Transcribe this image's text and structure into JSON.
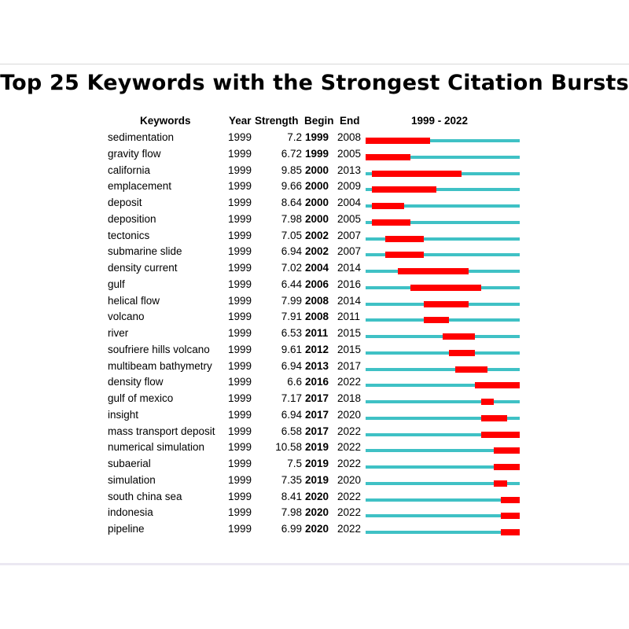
{
  "title": "Top 25 Keywords with the Strongest Citation Bursts",
  "headers": {
    "keywords": "Keywords",
    "year": "Year",
    "strength": "Strength",
    "begin": "Begin",
    "end": "End",
    "range": "1999 - 2022"
  },
  "colors": {
    "track": "#3fc1c5",
    "burst": "#ff0000"
  },
  "chart_data": {
    "type": "table",
    "range_start": 1999,
    "range_end": 2022,
    "rows": [
      {
        "keyword": "sedimentation",
        "year": "1999",
        "strength": "7.2",
        "begin": "1999",
        "end": "2008"
      },
      {
        "keyword": "gravity flow",
        "year": "1999",
        "strength": "6.72",
        "begin": "1999",
        "end": "2005"
      },
      {
        "keyword": "california",
        "year": "1999",
        "strength": "9.85",
        "begin": "2000",
        "end": "2013"
      },
      {
        "keyword": "emplacement",
        "year": "1999",
        "strength": "9.66",
        "begin": "2000",
        "end": "2009"
      },
      {
        "keyword": "deposit",
        "year": "1999",
        "strength": "8.64",
        "begin": "2000",
        "end": "2004"
      },
      {
        "keyword": "deposition",
        "year": "1999",
        "strength": "7.98",
        "begin": "2000",
        "end": "2005"
      },
      {
        "keyword": "tectonics",
        "year": "1999",
        "strength": "7.05",
        "begin": "2002",
        "end": "2007"
      },
      {
        "keyword": "submarine slide",
        "year": "1999",
        "strength": "6.94",
        "begin": "2002",
        "end": "2007"
      },
      {
        "keyword": "density current",
        "year": "1999",
        "strength": "7.02",
        "begin": "2004",
        "end": "2014"
      },
      {
        "keyword": "gulf",
        "year": "1999",
        "strength": "6.44",
        "begin": "2006",
        "end": "2016"
      },
      {
        "keyword": "helical flow",
        "year": "1999",
        "strength": "7.99",
        "begin": "2008",
        "end": "2014"
      },
      {
        "keyword": "volcano",
        "year": "1999",
        "strength": "7.91",
        "begin": "2008",
        "end": "2011"
      },
      {
        "keyword": "river",
        "year": "1999",
        "strength": "6.53",
        "begin": "2011",
        "end": "2015"
      },
      {
        "keyword": "soufriere hills volcano",
        "year": "1999",
        "strength": "9.61",
        "begin": "2012",
        "end": "2015"
      },
      {
        "keyword": "multibeam bathymetry",
        "year": "1999",
        "strength": "6.94",
        "begin": "2013",
        "end": "2017"
      },
      {
        "keyword": "density flow",
        "year": "1999",
        "strength": "6.6",
        "begin": "2016",
        "end": "2022"
      },
      {
        "keyword": "gulf of mexico",
        "year": "1999",
        "strength": "7.17",
        "begin": "2017",
        "end": "2018"
      },
      {
        "keyword": "insight",
        "year": "1999",
        "strength": "6.94",
        "begin": "2017",
        "end": "2020"
      },
      {
        "keyword": "mass transport deposit",
        "year": "1999",
        "strength": "6.58",
        "begin": "2017",
        "end": "2022"
      },
      {
        "keyword": "numerical simulation",
        "year": "1999",
        "strength": "10.58",
        "begin": "2019",
        "end": "2022"
      },
      {
        "keyword": "subaerial",
        "year": "1999",
        "strength": "7.5",
        "begin": "2019",
        "end": "2022"
      },
      {
        "keyword": "simulation",
        "year": "1999",
        "strength": "7.35",
        "begin": "2019",
        "end": "2020"
      },
      {
        "keyword": "south china sea",
        "year": "1999",
        "strength": "8.41",
        "begin": "2020",
        "end": "2022"
      },
      {
        "keyword": "indonesia",
        "year": "1999",
        "strength": "7.98",
        "begin": "2020",
        "end": "2022"
      },
      {
        "keyword": "pipeline",
        "year": "1999",
        "strength": "6.99",
        "begin": "2020",
        "end": "2022"
      }
    ]
  }
}
